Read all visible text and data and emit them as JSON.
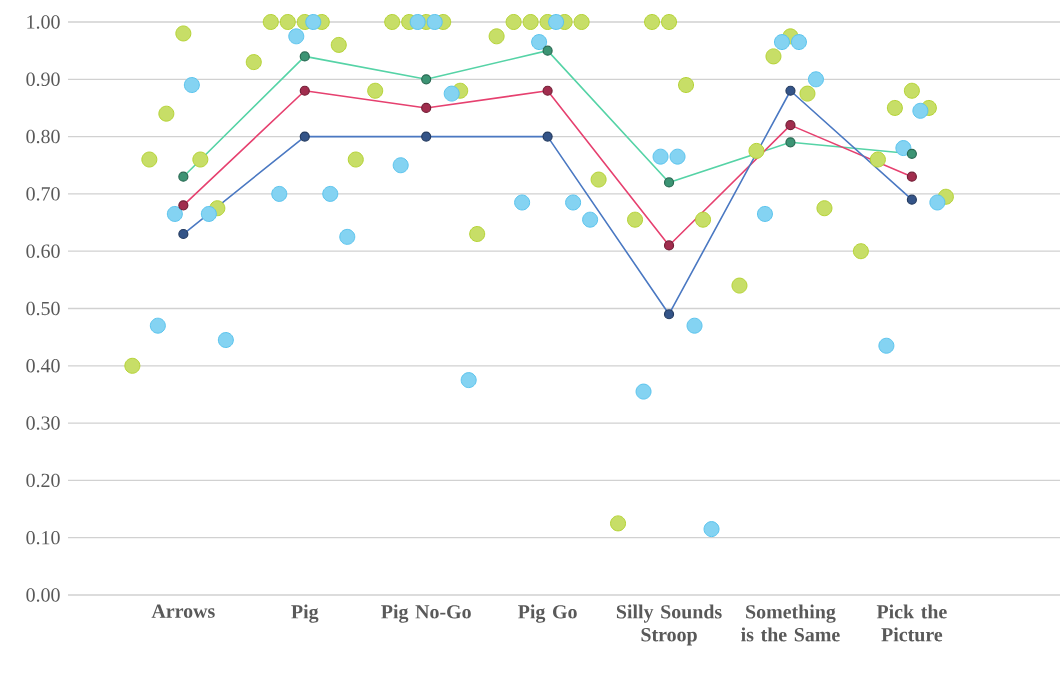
{
  "chart_data": {
    "type": "line",
    "categories": [
      "Arrows",
      "Pig",
      "Pig No-Go",
      "Pig Go",
      "Silly Sounds Stroop",
      "Something is the Same",
      "Pick the Picture"
    ],
    "ylim": [
      0,
      1.0
    ],
    "yticks": [
      {
        "value": 0,
        "label": "0.00"
      },
      {
        "value": 0.1,
        "label": "0.10"
      },
      {
        "value": 0.2,
        "label": "0.20"
      },
      {
        "value": 0.3,
        "label": "0.30"
      },
      {
        "value": 0.4,
        "label": "0.40"
      },
      {
        "value": 0.5,
        "label": "0.50"
      },
      {
        "value": 0.6,
        "label": "0.60"
      },
      {
        "value": 0.7,
        "label": "0.70"
      },
      {
        "value": 0.8,
        "label": "0.80"
      },
      {
        "value": 0.9,
        "label": "0.90"
      },
      {
        "value": 1.0,
        "label": "1.00"
      }
    ],
    "grid": "y",
    "marker": "circle",
    "series": [
      {
        "type": "scatter",
        "color": "#b5d334",
        "x": [
          "Arrows",
          "Arrows",
          "Arrows",
          "Arrows",
          "Arrows",
          "Arrows",
          "Pig",
          "Pig",
          "Pig",
          "Pig",
          "Pig",
          "Pig",
          "Pig",
          "Pig No-Go",
          "Pig No-Go",
          "Pig No-Go",
          "Pig No-Go",
          "Pig No-Go",
          "Pig No-Go",
          "Pig No-Go",
          "Pig Go",
          "Pig Go",
          "Pig Go",
          "Pig Go",
          "Pig Go",
          "Pig Go",
          "Pig Go",
          "Silly Sounds Stroop",
          "Silly Sounds Stroop",
          "Silly Sounds Stroop",
          "Silly Sounds Stroop",
          "Silly Sounds Stroop",
          "Silly Sounds Stroop",
          "Something is the Same",
          "Something is the Same",
          "Something is the Same",
          "Something is the Same",
          "Something is the Same",
          "Something is the Same",
          "Pick the Picture",
          "Pick the Picture",
          "Pick the Picture",
          "Pick the Picture",
          "Pick the Picture",
          "Pick the Picture"
        ],
        "values": [
          0.98,
          0.84,
          0.76,
          0.76,
          0.675,
          0.4,
          1.0,
          1.0,
          1.0,
          1.0,
          0.96,
          0.93,
          0.76,
          1.0,
          1.0,
          1.0,
          1.0,
          0.88,
          0.88,
          0.63,
          1.0,
          1.0,
          1.0,
          1.0,
          1.0,
          0.975,
          0.725,
          1.0,
          1.0,
          0.89,
          0.655,
          0.655,
          0.125,
          0.975,
          0.94,
          0.875,
          0.775,
          0.675,
          0.54,
          0.88,
          0.85,
          0.85,
          0.76,
          0.695,
          0.6
        ]
      },
      {
        "type": "scatter",
        "color": "#5bc4ee",
        "x": [
          "Arrows",
          "Arrows",
          "Arrows",
          "Arrows",
          "Arrows",
          "Pig",
          "Pig",
          "Pig",
          "Pig",
          "Pig",
          "Pig No-Go",
          "Pig No-Go",
          "Pig No-Go",
          "Pig No-Go",
          "Pig No-Go",
          "Pig Go",
          "Pig Go",
          "Pig Go",
          "Pig Go",
          "Pig Go",
          "Silly Sounds Stroop",
          "Silly Sounds Stroop",
          "Silly Sounds Stroop",
          "Silly Sounds Stroop",
          "Silly Sounds Stroop",
          "Something is the Same",
          "Something is the Same",
          "Something is the Same",
          "Something is the Same",
          "Pick the Picture",
          "Pick the Picture",
          "Pick the Picture",
          "Pick the Picture"
        ],
        "values": [
          0.89,
          0.665,
          0.665,
          0.47,
          0.445,
          1.0,
          0.975,
          0.7,
          0.7,
          0.625,
          1.0,
          1.0,
          0.875,
          0.75,
          0.375,
          1.0,
          0.965,
          0.685,
          0.685,
          0.655,
          0.765,
          0.765,
          0.47,
          0.355,
          0.115,
          0.965,
          0.965,
          0.9,
          0.665,
          0.845,
          0.78,
          0.685,
          0.435
        ]
      },
      {
        "color": "#55d3a6",
        "values": [
          0.73,
          0.94,
          0.9,
          0.95,
          0.72,
          0.79,
          0.77
        ]
      },
      {
        "color": "#e6406f",
        "values": [
          0.68,
          0.88,
          0.85,
          0.88,
          0.61,
          0.82,
          0.73
        ]
      },
      {
        "color": "#4a78c2",
        "values": [
          0.63,
          0.8,
          0.8,
          0.8,
          0.49,
          0.88,
          0.69
        ]
      }
    ]
  }
}
